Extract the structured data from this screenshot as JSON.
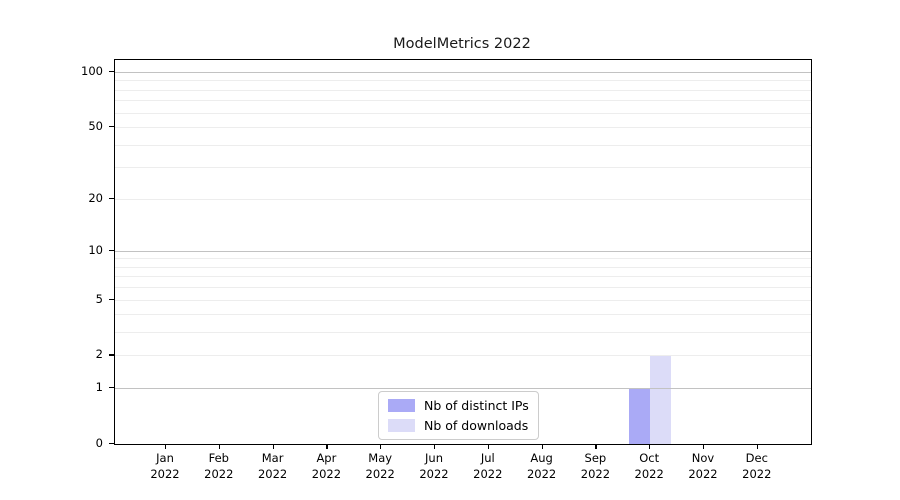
{
  "chart_data": {
    "type": "bar",
    "title": "ModelMetrics 2022",
    "categories": [
      "Jan",
      "Feb",
      "Mar",
      "Apr",
      "May",
      "Jun",
      "Jul",
      "Aug",
      "Sep",
      "Oct",
      "Nov",
      "Dec"
    ],
    "category_year": "2022",
    "series": [
      {
        "name": "Nb of distinct IPs",
        "color": "#aaaaf6",
        "values": [
          0,
          0,
          0,
          0,
          0,
          0,
          0,
          0,
          0,
          1,
          0,
          0
        ]
      },
      {
        "name": "Nb of downloads",
        "color": "#dcdcf8",
        "values": [
          0,
          0,
          0,
          0,
          0,
          0,
          0,
          0,
          0,
          2,
          0,
          0
        ]
      }
    ],
    "yscale": "log1p",
    "ylim": [
      0,
      116
    ],
    "ytick_labels": [
      "0",
      "1",
      "2",
      "5",
      "10",
      "20",
      "50",
      "100"
    ],
    "ytick_values": [
      0,
      1,
      2,
      5,
      10,
      20,
      50,
      100
    ],
    "grid_major_values": [
      1,
      10,
      100
    ],
    "grid_minor_values": [
      2,
      3,
      4,
      5,
      6,
      7,
      8,
      9,
      20,
      30,
      40,
      50,
      60,
      70,
      80,
      90
    ],
    "legend_position": "lower center",
    "colors": {
      "grid_major": "#c2c2c2",
      "grid_minor": "#ededed",
      "axis": "#000000",
      "background": "#ffffff"
    }
  }
}
